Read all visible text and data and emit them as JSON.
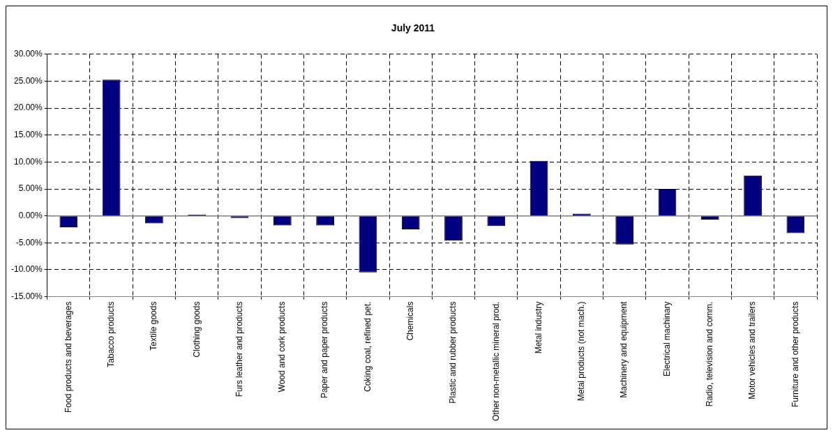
{
  "chart_data": {
    "type": "bar",
    "title": "July 2011",
    "categories": [
      "Food products and beverages",
      "Tabacco products",
      "Textile goods",
      "Clothing goods",
      "Furs leather and products",
      "Wood and cork products",
      "Paper and paper products",
      "Coking coal, refined pet.",
      "Chemicals",
      "Plastic and rubber products",
      "Other non-metallic mineral prod.",
      "Metal industry",
      "Metal products (not mach.)",
      "Machinery and equipment",
      "Electrical machinary",
      "Radio, television and comm.",
      "Motor vehicles and trailers",
      "Furniture and other products"
    ],
    "values": [
      -2.1,
      25.3,
      -1.4,
      0.2,
      -0.4,
      -1.8,
      -1.8,
      -10.5,
      -2.5,
      -4.6,
      -1.9,
      10.2,
      0.4,
      -5.3,
      5.0,
      -0.7,
      7.5,
      -3.2
    ],
    "color": "#000080",
    "ylim": [
      -15,
      30
    ],
    "yticks": [
      {
        "value": -15,
        "label": "-15.00%"
      },
      {
        "value": -10,
        "label": "-10.00%"
      },
      {
        "value": -5,
        "label": "-5.00%"
      },
      {
        "value": 0,
        "label": "0.00%"
      },
      {
        "value": 5,
        "label": "5.00%"
      },
      {
        "value": 10,
        "label": "10.00%"
      },
      {
        "value": 15,
        "label": "15.00%"
      },
      {
        "value": 20,
        "label": "20.00%"
      },
      {
        "value": 25,
        "label": "25.00%"
      },
      {
        "value": 30,
        "label": "30.00%"
      }
    ],
    "grid": true,
    "legend": false,
    "line_style": "dashed"
  }
}
